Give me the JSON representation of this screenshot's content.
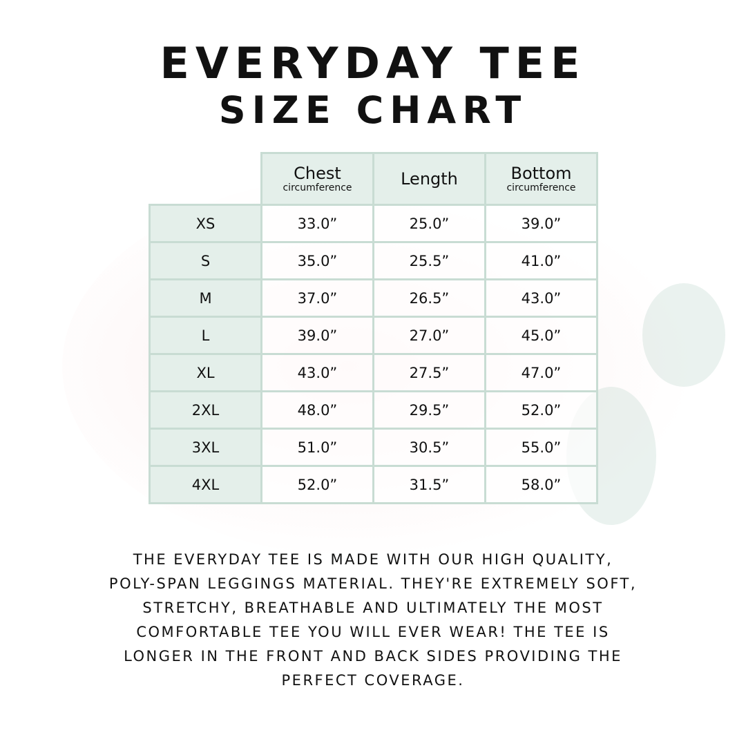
{
  "title": {
    "line1": "EVERYDAY TEE",
    "line2": "SIZE CHART"
  },
  "colors": {
    "border": "#c8dcd3",
    "header_bg": "#e4efea",
    "text": "#111111"
  },
  "table": {
    "columns": [
      {
        "main": "Chest",
        "sub": "circumference"
      },
      {
        "main": "Length",
        "sub": ""
      },
      {
        "main": "Bottom",
        "sub": "circumference"
      }
    ],
    "rows": [
      {
        "size": "XS",
        "values": [
          "33.0”",
          "25.0”",
          "39.0”"
        ]
      },
      {
        "size": "S",
        "values": [
          "35.0”",
          "25.5”",
          "41.0”"
        ]
      },
      {
        "size": "M",
        "values": [
          "37.0”",
          "26.5”",
          "43.0”"
        ]
      },
      {
        "size": "L",
        "values": [
          "39.0”",
          "27.0”",
          "45.0”"
        ]
      },
      {
        "size": "XL",
        "values": [
          "43.0”",
          "27.5”",
          "47.0”"
        ]
      },
      {
        "size": "2XL",
        "values": [
          "48.0”",
          "29.5”",
          "52.0”"
        ]
      },
      {
        "size": "3XL",
        "values": [
          "51.0”",
          "30.5”",
          "55.0”"
        ]
      },
      {
        "size": "4XL",
        "values": [
          "52.0”",
          "31.5”",
          "58.0”"
        ]
      }
    ]
  },
  "description": [
    "THE EVERYDAY TEE IS MADE WITH OUR HIGH QUALITY,",
    "POLY-SPAN LEGGINGS MATERIAL. THEY'RE EXTREMELY SOFT,",
    "STRETCHY, BREATHABLE AND ULTIMATELY THE MOST",
    "COMFORTABLE TEE YOU WILL EVER WEAR! THE TEE IS",
    "LONGER IN THE FRONT AND BACK SIDES PROVIDING THE",
    "PERFECT COVERAGE."
  ]
}
